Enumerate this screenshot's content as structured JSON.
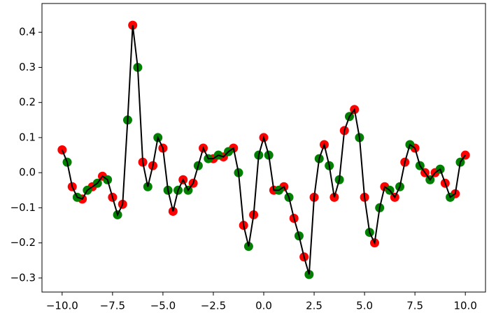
{
  "chart_data": {
    "type": "line",
    "x": [
      -10,
      -9.75,
      -9.5,
      -9.25,
      -9,
      -8.75,
      -8.5,
      -8.25,
      -8,
      -7.75,
      -7.5,
      -7.25,
      -7,
      -6.75,
      -6.5,
      -6.25,
      -6,
      -5.75,
      -5.5,
      -5.25,
      -5,
      -4.75,
      -4.5,
      -4.25,
      -4,
      -3.75,
      -3.5,
      -3.25,
      -3,
      -2.75,
      -2.5,
      -2.25,
      -2,
      -1.75,
      -1.5,
      -1.25,
      -1,
      -0.75,
      -0.5,
      -0.25,
      0,
      0.25,
      0.5,
      0.75,
      1,
      1.25,
      1.5,
      1.75,
      2,
      2.25,
      2.5,
      2.75,
      3,
      3.25,
      3.5,
      3.75,
      4,
      4.25,
      4.5,
      4.75,
      5,
      5.25,
      5.5,
      5.75,
      6,
      6.25,
      6.5,
      6.75,
      7,
      7.25,
      7.5,
      7.75,
      8,
      8.25,
      8.5,
      8.75,
      9,
      9.25,
      9.5,
      9.75,
      10
    ],
    "series": [
      {
        "color": "#000000",
        "style": "line",
        "values": [
          0.065,
          0.03,
          -0.04,
          -0.07,
          -0.075,
          -0.05,
          -0.04,
          -0.03,
          -0.01,
          -0.02,
          -0.07,
          -0.12,
          -0.09,
          0.15,
          0.42,
          0.3,
          0.03,
          -0.04,
          0.02,
          0.1,
          0.07,
          -0.05,
          -0.11,
          -0.05,
          -0.02,
          -0.05,
          -0.03,
          0.02,
          0.07,
          0.04,
          0.04,
          0.05,
          0.045,
          0.06,
          0.07,
          0.0,
          -0.15,
          -0.21,
          -0.12,
          0.05,
          0.1,
          0.05,
          -0.05,
          -0.05,
          -0.04,
          -0.07,
          -0.13,
          -0.18,
          -0.24,
          -0.29,
          -0.07,
          0.04,
          0.08,
          0.02,
          -0.07,
          -0.02,
          0.12,
          0.16,
          0.18,
          0.1,
          -0.07,
          -0.17,
          -0.2,
          -0.1,
          -0.04,
          -0.05,
          -0.07,
          -0.04,
          0.03,
          0.08,
          0.07,
          0.02,
          0.0,
          -0.02,
          0.0,
          0.01,
          -0.03,
          -0.07,
          -0.06,
          0.03,
          0.05
        ]
      },
      {
        "color": "#ff0000",
        "style": "scatter",
        "values": [
          0.065,
          null,
          -0.04,
          null,
          -0.075,
          null,
          -0.04,
          null,
          -0.01,
          null,
          -0.07,
          null,
          -0.09,
          null,
          0.42,
          null,
          0.03,
          null,
          0.02,
          null,
          0.07,
          null,
          -0.11,
          null,
          -0.02,
          null,
          -0.03,
          null,
          0.07,
          null,
          0.04,
          null,
          0.045,
          null,
          0.07,
          null,
          -0.15,
          null,
          -0.12,
          null,
          0.1,
          null,
          -0.05,
          null,
          -0.04,
          null,
          -0.13,
          null,
          -0.24,
          null,
          -0.07,
          null,
          0.08,
          null,
          -0.07,
          null,
          0.12,
          null,
          0.18,
          null,
          -0.07,
          null,
          -0.2,
          null,
          -0.04,
          null,
          -0.07,
          null,
          0.03,
          null,
          0.07,
          null,
          0.0,
          null,
          0.0,
          null,
          -0.03,
          null,
          -0.06,
          null,
          0.05
        ]
      },
      {
        "color": "#008000",
        "style": "scatter",
        "values": [
          null,
          0.03,
          null,
          -0.07,
          null,
          -0.05,
          null,
          -0.03,
          null,
          -0.02,
          null,
          -0.12,
          null,
          0.15,
          null,
          0.3,
          null,
          -0.04,
          null,
          0.1,
          null,
          -0.05,
          null,
          -0.05,
          null,
          -0.05,
          null,
          0.02,
          null,
          0.04,
          null,
          0.05,
          null,
          0.06,
          null,
          0.0,
          null,
          -0.21,
          null,
          0.05,
          null,
          0.05,
          null,
          -0.05,
          null,
          -0.07,
          null,
          -0.18,
          null,
          -0.29,
          null,
          0.04,
          null,
          0.02,
          null,
          -0.02,
          null,
          0.16,
          null,
          0.1,
          null,
          -0.17,
          null,
          -0.1,
          null,
          -0.05,
          null,
          -0.04,
          null,
          0.08,
          null,
          0.02,
          null,
          -0.02,
          null,
          0.01,
          null,
          -0.07,
          null,
          0.03,
          null
        ]
      }
    ],
    "xlim": [
      -11,
      11
    ],
    "ylim": [
      -0.34,
      0.482
    ],
    "xticks": [
      {
        "value": -10,
        "label": "−10.0"
      },
      {
        "value": -7.5,
        "label": "−7.5"
      },
      {
        "value": -5,
        "label": "−5.0"
      },
      {
        "value": -2.5,
        "label": "−2.5"
      },
      {
        "value": 0,
        "label": "0.0"
      },
      2.5,
      {
        "value": 5,
        "label": "5.0"
      },
      7.5,
      {
        "value": 10,
        "label": "10.0"
      }
    ],
    "yticks": [
      {
        "value": -0.3,
        "label": "−0.3"
      },
      {
        "value": -0.2,
        "label": "−0.2"
      },
      {
        "value": -0.1,
        "label": "−0.1"
      },
      {
        "value": 0,
        "label": "0.0"
      },
      0.1,
      0.2,
      0.3,
      0.4
    ]
  }
}
